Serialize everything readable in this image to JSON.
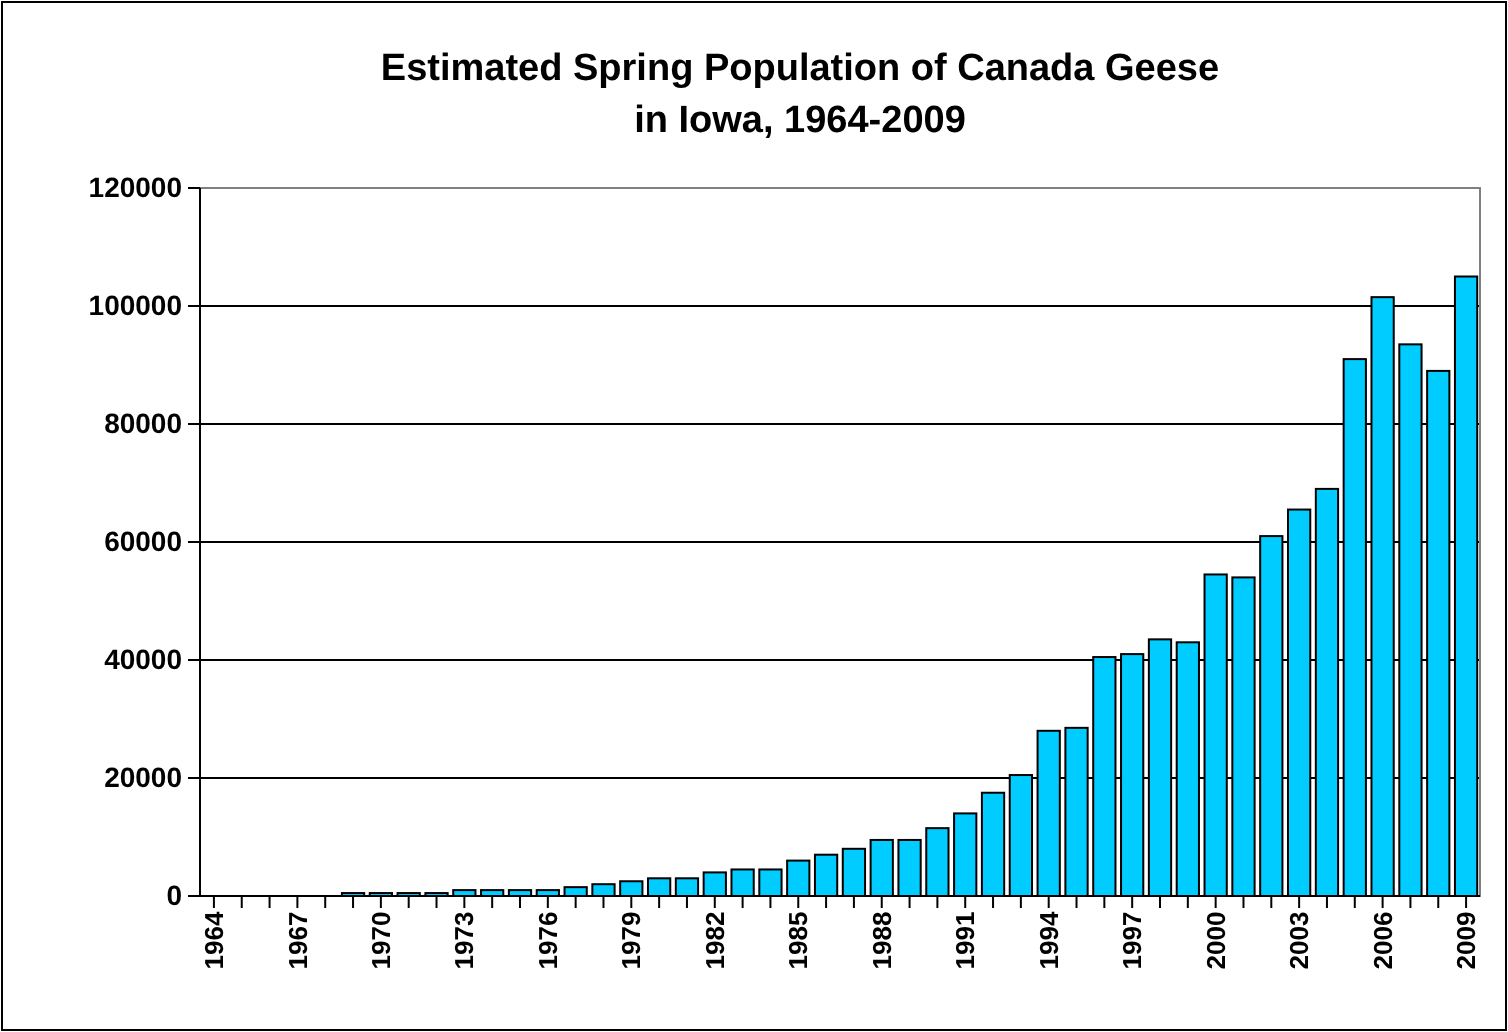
{
  "chart_data": {
    "type": "bar",
    "title": "Estimated Spring Population of Canada Geese\nin Iowa, 1964-2009",
    "categories": [
      "1964",
      null,
      null,
      "1967",
      null,
      null,
      "1970",
      null,
      null,
      "1973",
      null,
      null,
      "1976",
      null,
      null,
      "1979",
      null,
      null,
      "1982",
      null,
      null,
      "1985",
      null,
      null,
      "1988",
      null,
      null,
      "1991",
      null,
      null,
      "1994",
      null,
      null,
      "1997",
      null,
      null,
      "2000",
      null,
      null,
      "2003",
      null,
      null,
      "2006",
      null,
      null,
      "2009"
    ],
    "values": [
      0,
      0,
      0,
      0,
      0,
      500,
      500,
      500,
      500,
      1000,
      1000,
      1000,
      1000,
      1500,
      2000,
      2500,
      3000,
      3000,
      4000,
      4500,
      4500,
      6000,
      7000,
      8000,
      9500,
      9500,
      11500,
      14000,
      17500,
      20500,
      28000,
      28500,
      40500,
      41000,
      43500,
      43000,
      54500,
      54000,
      61000,
      65500,
      69000,
      91000,
      101500,
      93500,
      89000,
      105000
    ],
    "color": "#00ccff",
    "ylim": [
      0,
      120000
    ],
    "yticks": [
      0,
      20000,
      40000,
      60000,
      80000,
      100000,
      120000
    ],
    "grid": "y"
  }
}
